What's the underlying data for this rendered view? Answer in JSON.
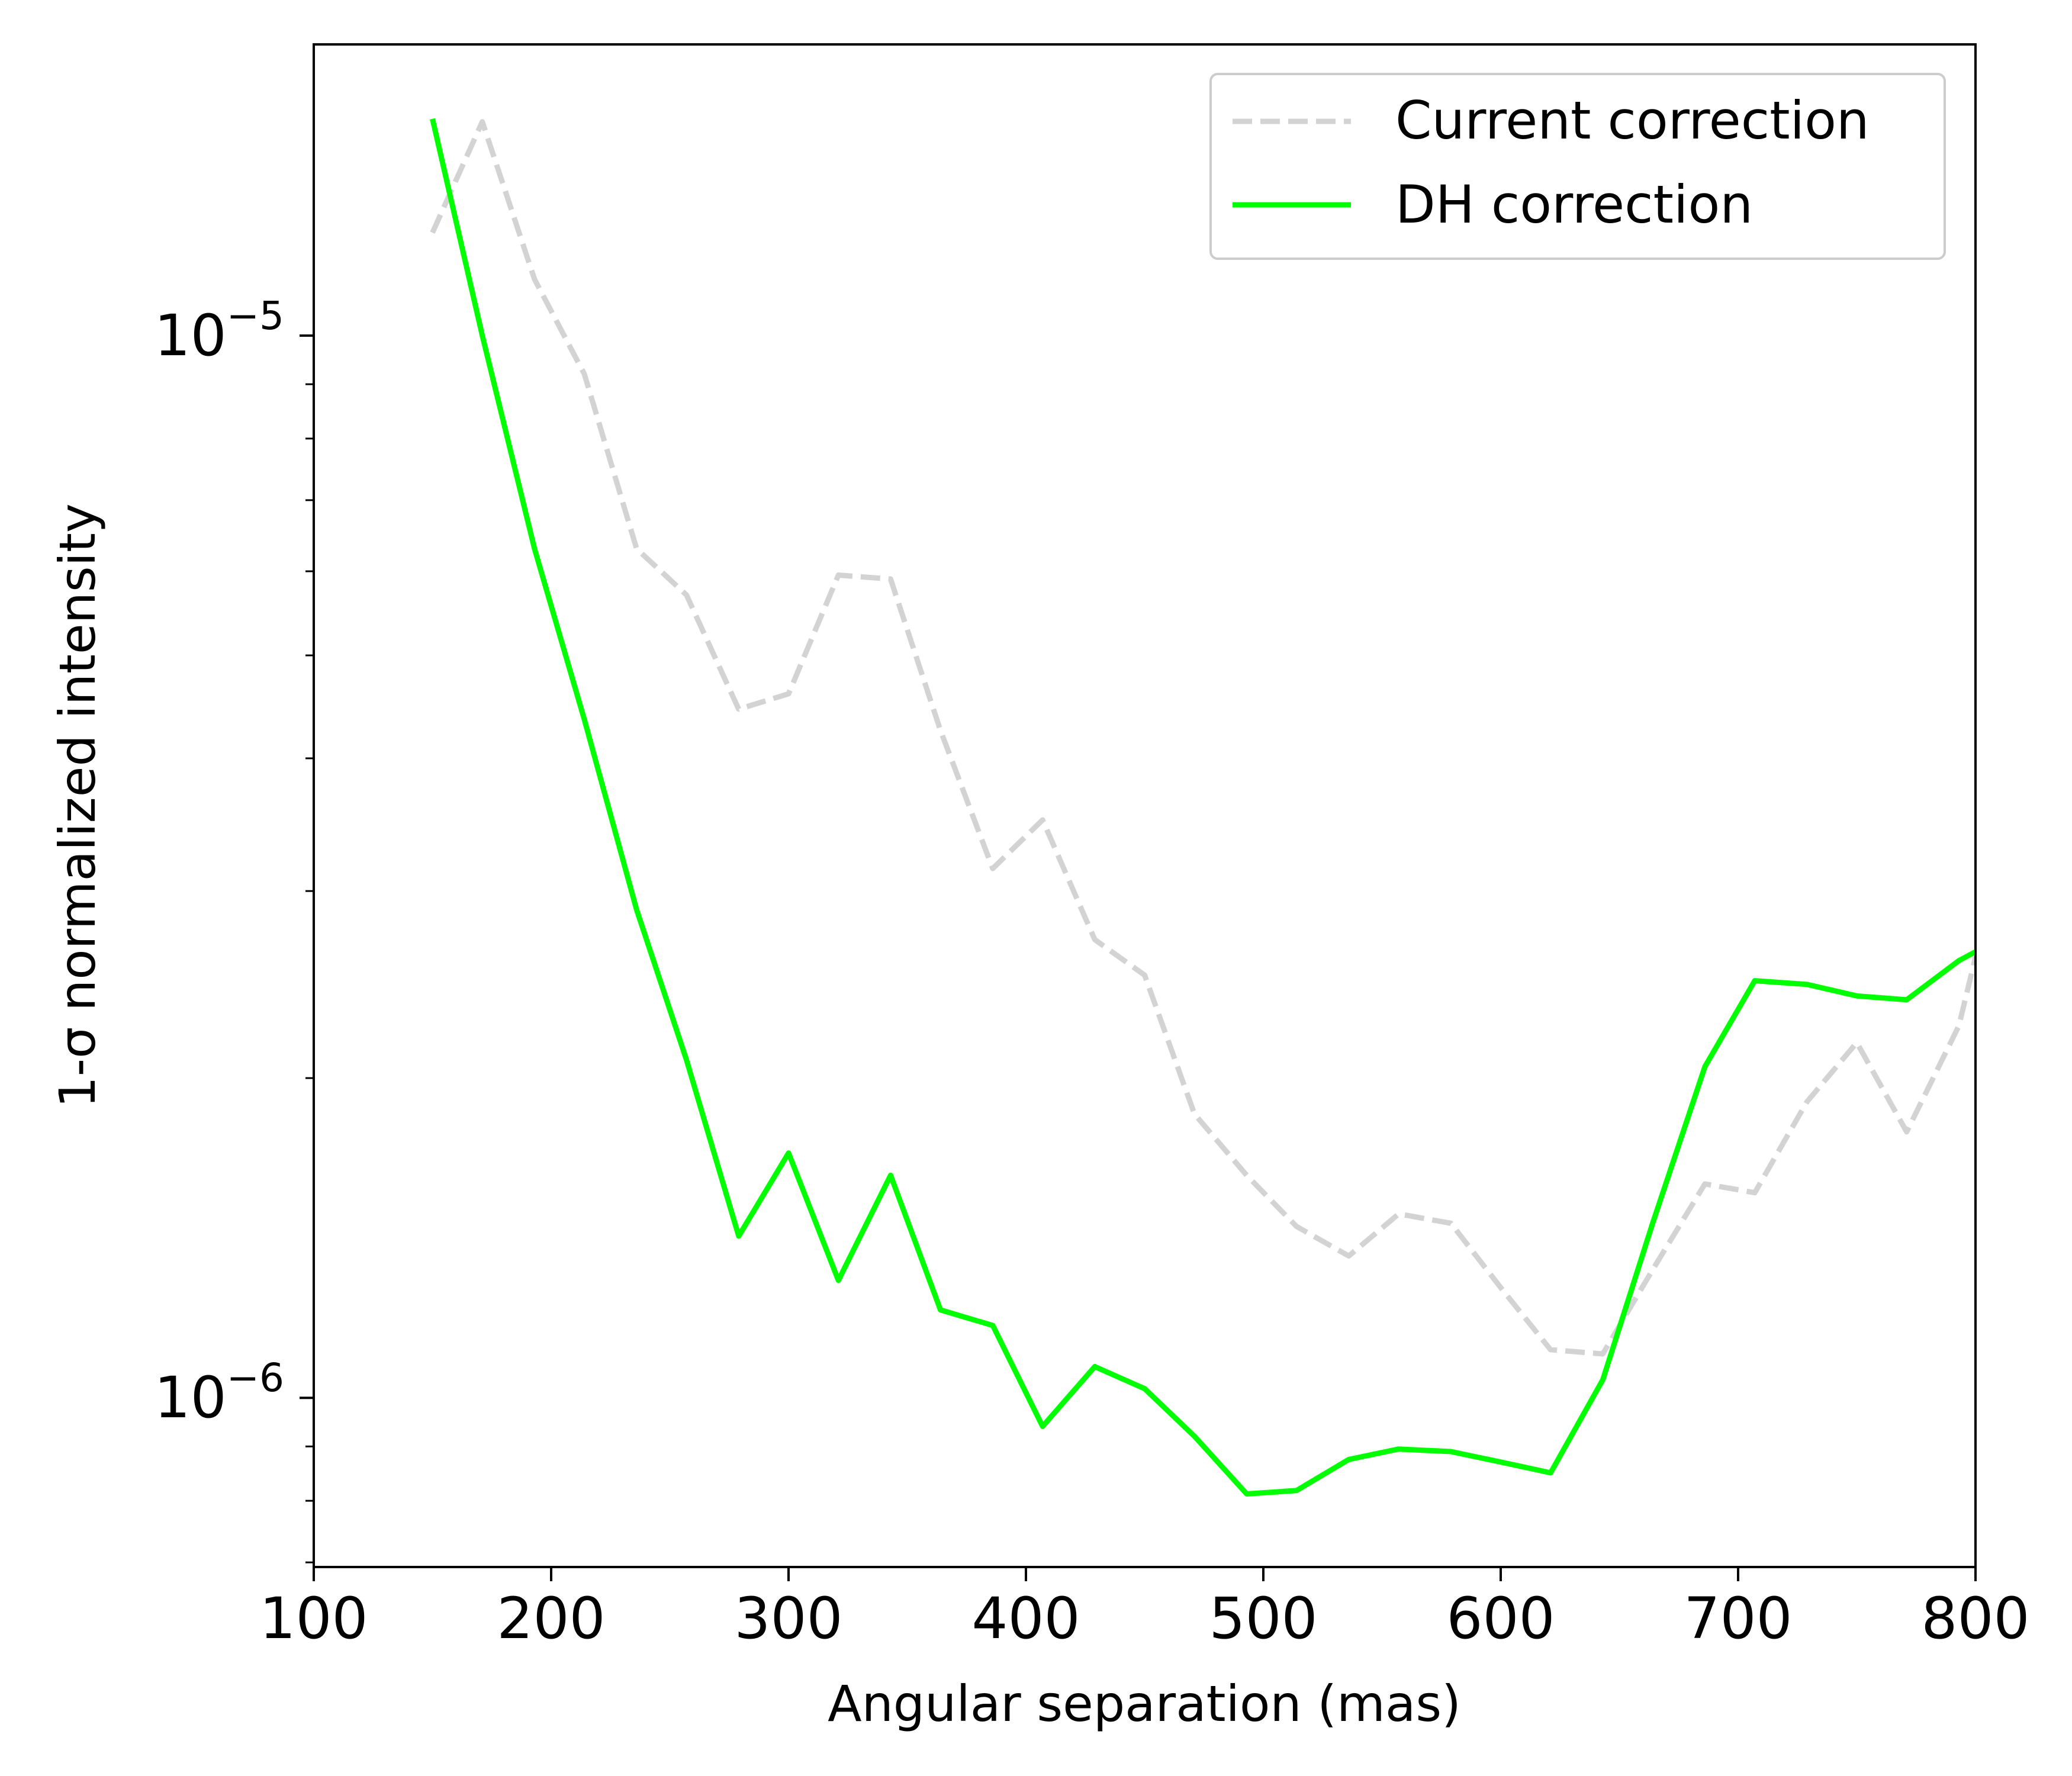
{
  "chart_data": {
    "type": "line",
    "title": "",
    "xlabel": "Angular separation (mas)",
    "ylabel": "1-σ normalized intensity",
    "xlim": [
      100,
      800
    ],
    "ylim": [
      6.93e-07,
      1.88e-05
    ],
    "yscale": "log",
    "grid": false,
    "legend_position": "top-right",
    "xticks": [
      100,
      200,
      300,
      400,
      500,
      600,
      700,
      800
    ],
    "yticks": [
      {
        "value": 1e-05,
        "base": "10",
        "exp": "−5"
      },
      {
        "value": 1e-06,
        "base": "10",
        "exp": "−6"
      }
    ],
    "series": [
      {
        "name": "Current correction",
        "color": "#d3d3d3",
        "dash": true,
        "x": [
          150,
          171,
          193,
          214,
          236,
          257,
          279,
          300,
          321,
          343,
          364,
          386,
          407,
          429,
          450,
          471,
          493,
          514,
          536,
          557,
          579,
          600,
          621,
          643,
          664,
          686,
          707,
          729,
          750,
          771,
          793,
          800
        ],
        "y": [
          1.25e-05,
          1.59e-05,
          1.13e-05,
          9.2e-06,
          6.3e-06,
          5.7e-06,
          4.45e-06,
          4.6e-06,
          5.95e-06,
          5.9e-06,
          4.25e-06,
          3.15e-06,
          3.5e-06,
          2.7e-06,
          2.5e-06,
          1.85e-06,
          1.62e-06,
          1.45e-06,
          1.36e-06,
          1.49e-06,
          1.46e-06,
          1.27e-06,
          1.11e-06,
          1.1e-06,
          1.32e-06,
          1.59e-06,
          1.56e-06,
          1.9e-06,
          2.16e-06,
          1.78e-06,
          2.24e-06,
          2.6e-06
        ]
      },
      {
        "name": "DH correction",
        "color": "#00ff00",
        "dash": false,
        "x": [
          150,
          171,
          193,
          214,
          236,
          257,
          279,
          300,
          321,
          343,
          364,
          386,
          407,
          429,
          450,
          471,
          493,
          514,
          536,
          557,
          579,
          600,
          621,
          643,
          664,
          686,
          707,
          729,
          750,
          771,
          793,
          800
        ],
        "y": [
          1.6e-05,
          1e-05,
          6.3e-06,
          4.35e-06,
          2.88e-06,
          2.08e-06,
          1.42e-06,
          1.7e-06,
          1.29e-06,
          1.62e-06,
          1.21e-06,
          1.17e-06,
          9.4e-07,
          1.07e-06,
          1.02e-06,
          9.2e-07,
          8.12e-07,
          8.18e-07,
          8.75e-07,
          8.95e-07,
          8.9e-07,
          8.7e-07,
          8.5e-07,
          1.04e-06,
          1.46e-06,
          2.05e-06,
          2.47e-06,
          2.45e-06,
          2.39e-06,
          2.37e-06,
          2.58e-06,
          2.63e-06
        ]
      }
    ]
  }
}
